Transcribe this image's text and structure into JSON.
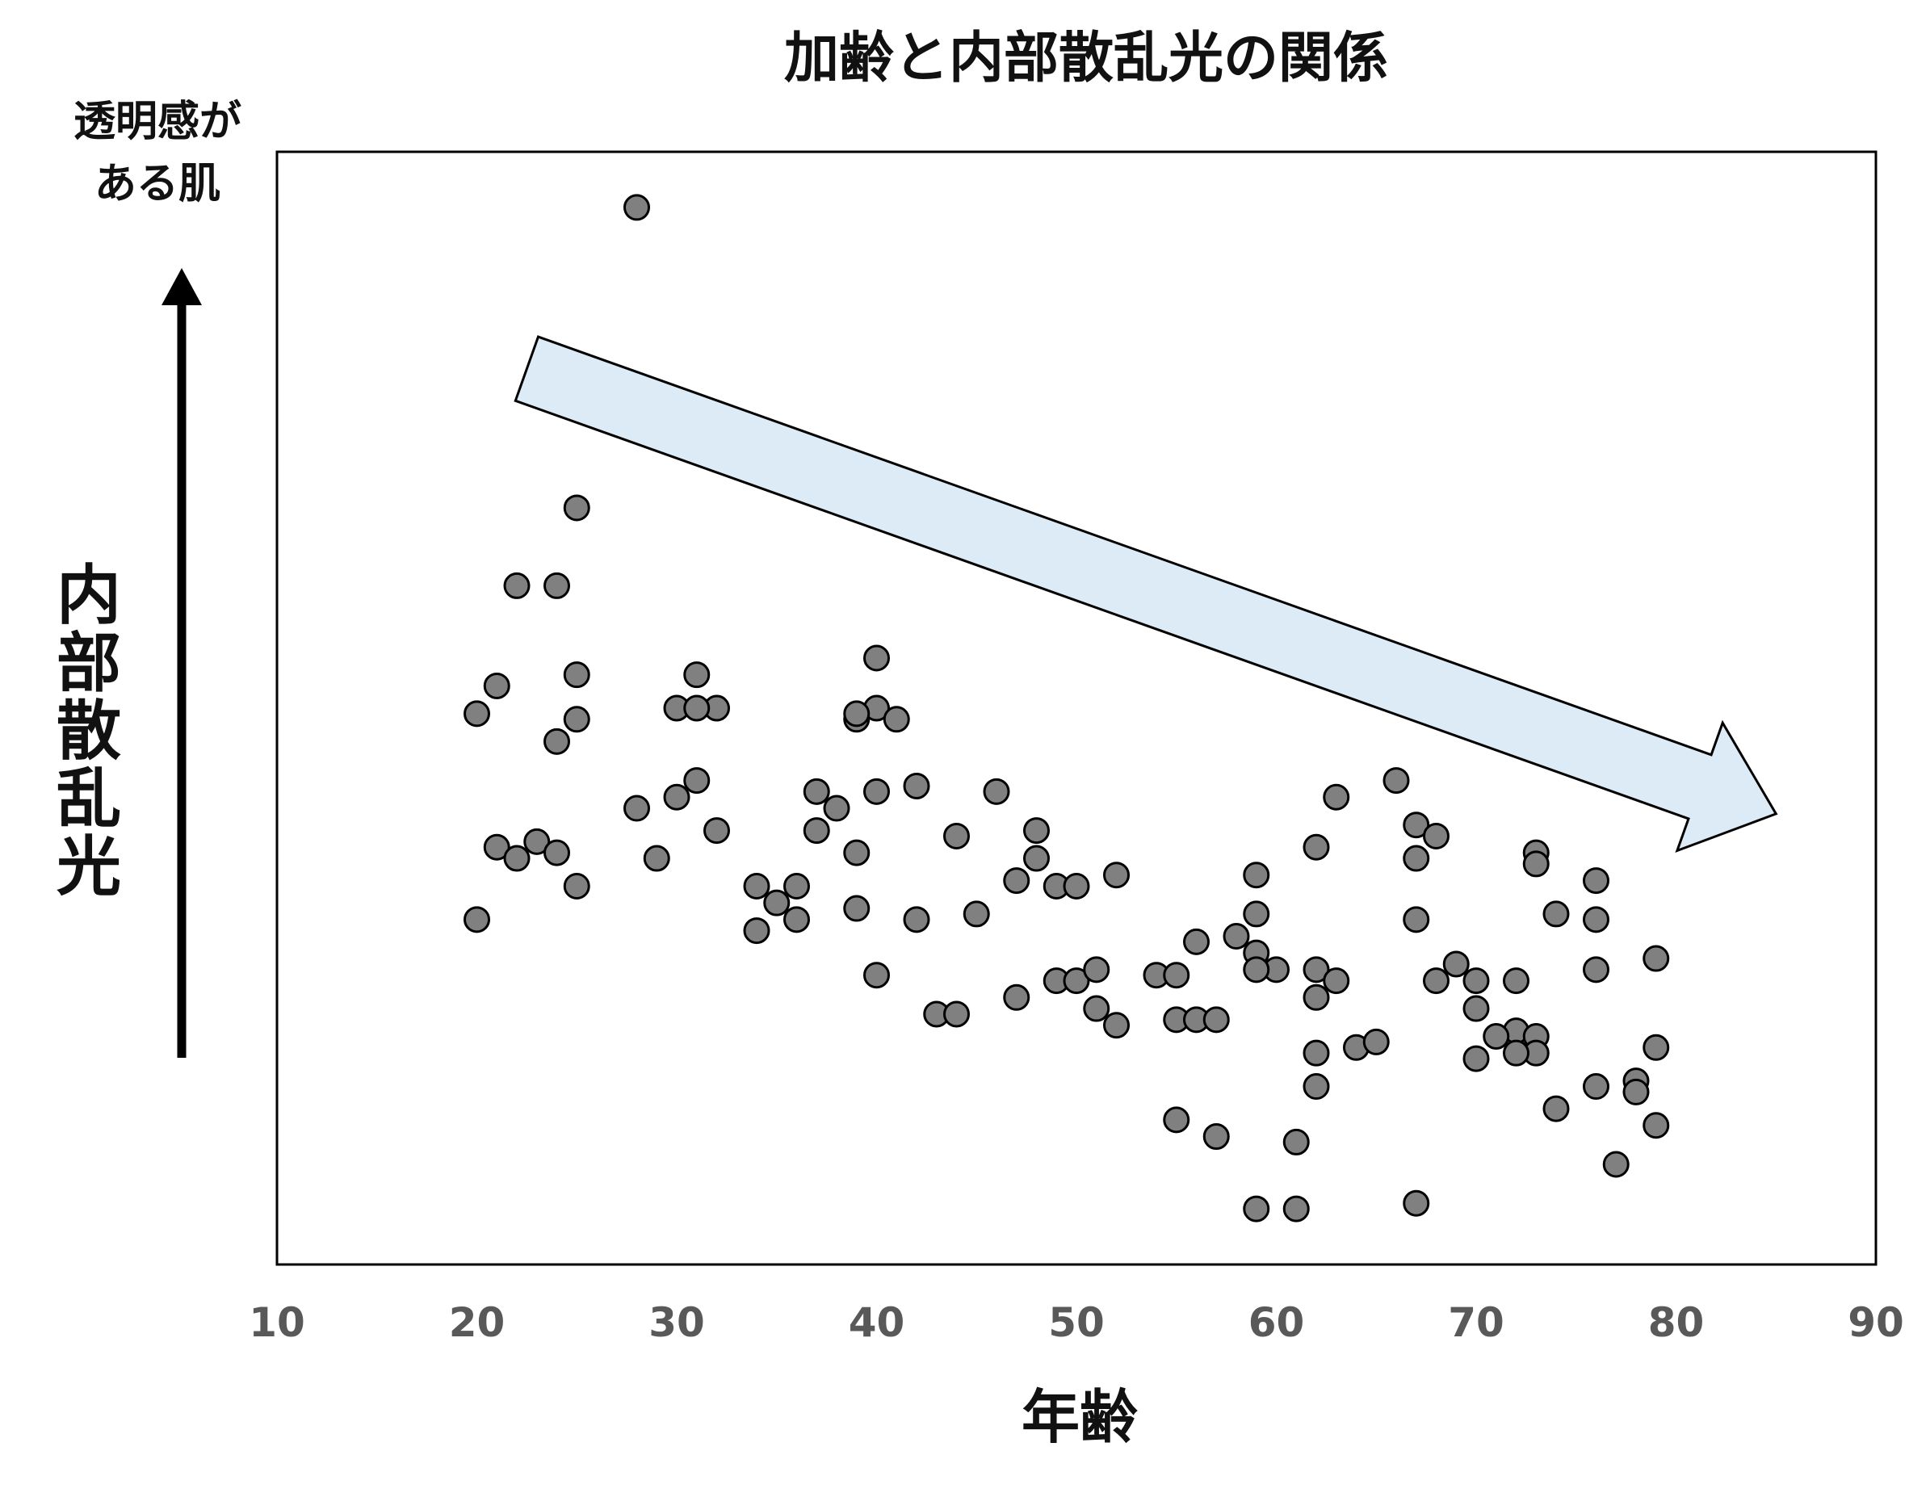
{
  "chart_data": {
    "type": "scatter",
    "title": "加齢と内部散乱光の関係",
    "xlabel": "年齢",
    "ylabel": "内部散乱光",
    "y_top_note": "透明感が ある肌",
    "xlim": [
      10,
      90
    ],
    "ylim": [
      0,
      100
    ],
    "xticks": [
      "10",
      "20",
      "30",
      "40",
      "50",
      "60",
      "70",
      "80",
      "90"
    ],
    "yticks_visible": false,
    "grid": false,
    "legend": "none",
    "marker_color": "#808080",
    "trend_arrow_color": "#DDEBF7",
    "trend_arrow": {
      "from": [
        22.5,
        80.5
      ],
      "to": [
        85,
        40.5
      ]
    },
    "y_axis_arrow": true,
    "series": [
      {
        "x": [
          28,
          25,
          22,
          24,
          21,
          20,
          25,
          24,
          25,
          23,
          21,
          22,
          24,
          25,
          20,
          28,
          29,
          31,
          30,
          31,
          32,
          31,
          30,
          32,
          40,
          39,
          40,
          41,
          39,
          40,
          37,
          38,
          37,
          39,
          39,
          40,
          42,
          36,
          34,
          35,
          34,
          36,
          46,
          44,
          48,
          48,
          47,
          49,
          50,
          52,
          45,
          42,
          43,
          44,
          47,
          49,
          50,
          51,
          51,
          52,
          54,
          55,
          56,
          58,
          59,
          59,
          59,
          60,
          62,
          62,
          63,
          62,
          55,
          56,
          57,
          59,
          57,
          55,
          61,
          59,
          61,
          63,
          66,
          67,
          67,
          68,
          67,
          62,
          62,
          64,
          65,
          69,
          68,
          67,
          73,
          73,
          76,
          74,
          76,
          76,
          79,
          70,
          70,
          72,
          72,
          71,
          73,
          73,
          72,
          70,
          76,
          78,
          78,
          79,
          74,
          79,
          77
        ]
      }
    ],
    "y_values": [
      95,
      68,
      61,
      61,
      52,
      49.5,
      53,
      47,
      49,
      38,
      37.5,
      36.5,
      37,
      34,
      31,
      41,
      36.5,
      53,
      50,
      43.5,
      50,
      50,
      42,
      39,
      54.5,
      49,
      50,
      49,
      49.5,
      42.5,
      42.5,
      41,
      39,
      37,
      32,
      26,
      43,
      34,
      34,
      32.5,
      30,
      31,
      42.5,
      38.5,
      39,
      36.5,
      34.5,
      34,
      34,
      35,
      31.5,
      31,
      22.5,
      22.5,
      24,
      25.5,
      25.5,
      26.5,
      23,
      21.5,
      26,
      26,
      29,
      29.5,
      28,
      31.5,
      35,
      26.5,
      26.5,
      24,
      25.5,
      37.5,
      22,
      22,
      22,
      26.5,
      11.5,
      13,
      11,
      5,
      5,
      42,
      43.5,
      39.5,
      36.5,
      38.5,
      31,
      19,
      16,
      19.5,
      20,
      27,
      25.5,
      5.5,
      37,
      36,
      34.5,
      31.5,
      31,
      26.5,
      27.5,
      25.5,
      23,
      25.5,
      21,
      20.5,
      20.5,
      19,
      19,
      18.5,
      16,
      16.5,
      15.5,
      19.5,
      14,
      12.5,
      9
    ]
  }
}
